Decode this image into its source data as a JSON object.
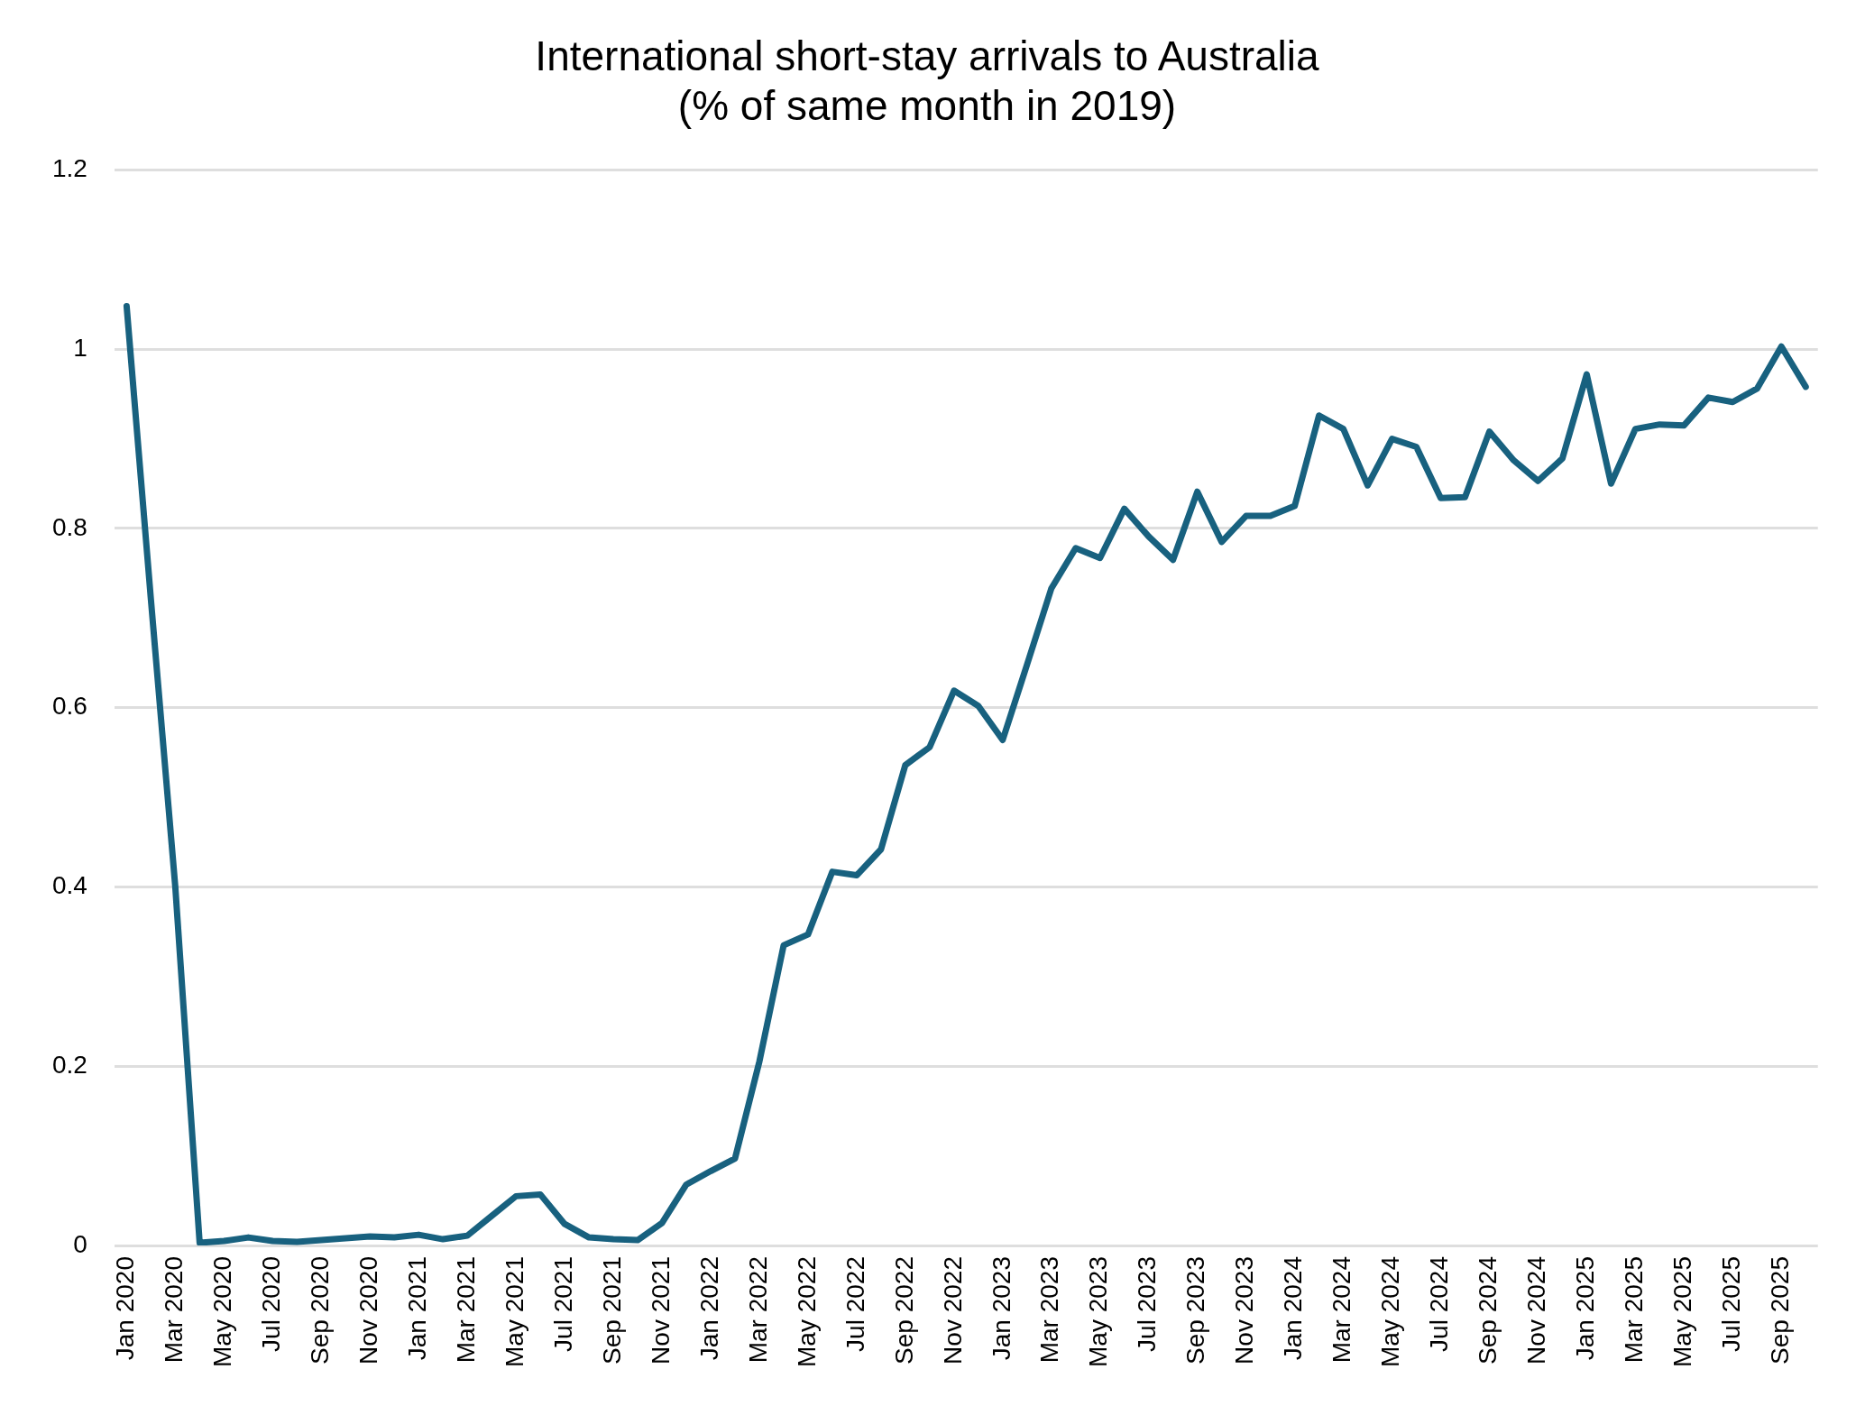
{
  "chart_data": {
    "type": "line",
    "title": "International short-stay arrivals to Australia\n(% of same month in 2019)",
    "categories": [
      "Jan 2020",
      null,
      "Mar 2020",
      null,
      "May 2020",
      null,
      "Jul 2020",
      null,
      "Sep 2020",
      null,
      "Nov 2020",
      null,
      "Jan 2021",
      null,
      "Mar 2021",
      null,
      "May 2021",
      null,
      "Jul 2021",
      null,
      "Sep 2021",
      null,
      "Nov 2021",
      null,
      "Jan 2022",
      null,
      "Mar 2022",
      null,
      "May 2022",
      null,
      "Jul 2022",
      null,
      "Sep 2022",
      null,
      "Nov 2022",
      null,
      "Jan 2023",
      null,
      "Mar 2023",
      null,
      "May 2023",
      null,
      "Jul 2023",
      null,
      "Sep 2023",
      null,
      "Nov 2023",
      null,
      "Jan 2024",
      null,
      "Mar 2024",
      null,
      "May 2024",
      null,
      "Jul 2024",
      null,
      "Sep 2024",
      null,
      "Nov 2024",
      null,
      "Jan 2025",
      null,
      "Mar 2025",
      null,
      "May 2025",
      null,
      "Jul 2025",
      null,
      "Sep 2025",
      null
    ],
    "series": [
      {
        "color": "#18617f",
        "values": [
          1.048,
          0.72,
          0.4,
          0.003,
          0.005,
          0.009,
          0.005,
          0.004,
          0.006,
          0.008,
          0.01,
          0.009,
          0.012,
          0.007,
          0.011,
          0.033,
          0.055,
          0.057,
          0.024,
          0.009,
          0.007,
          0.006,
          0.025,
          0.068,
          0.083,
          0.097,
          0.205,
          0.335,
          0.347,
          0.417,
          0.413,
          0.442,
          0.536,
          0.556,
          0.619,
          0.602,
          0.564,
          0.648,
          0.733,
          0.778,
          0.767,
          0.822,
          0.791,
          0.765,
          0.841,
          0.785,
          0.814,
          0.814,
          0.825,
          0.926,
          0.911,
          0.848,
          0.9,
          0.891,
          0.834,
          0.835,
          0.908,
          0.876,
          0.853,
          0.878,
          0.972,
          0.85,
          0.911,
          0.916,
          0.915,
          0.946,
          0.941,
          0.956,
          1.003,
          0.958
        ]
      }
    ],
    "ylim": [
      0,
      1.2
    ],
    "yticks": [
      0,
      0.2,
      0.4,
      0.6,
      0.8,
      1,
      1.2
    ],
    "grid": "y",
    "legend": false,
    "marker": "none",
    "line_style": "solid"
  }
}
